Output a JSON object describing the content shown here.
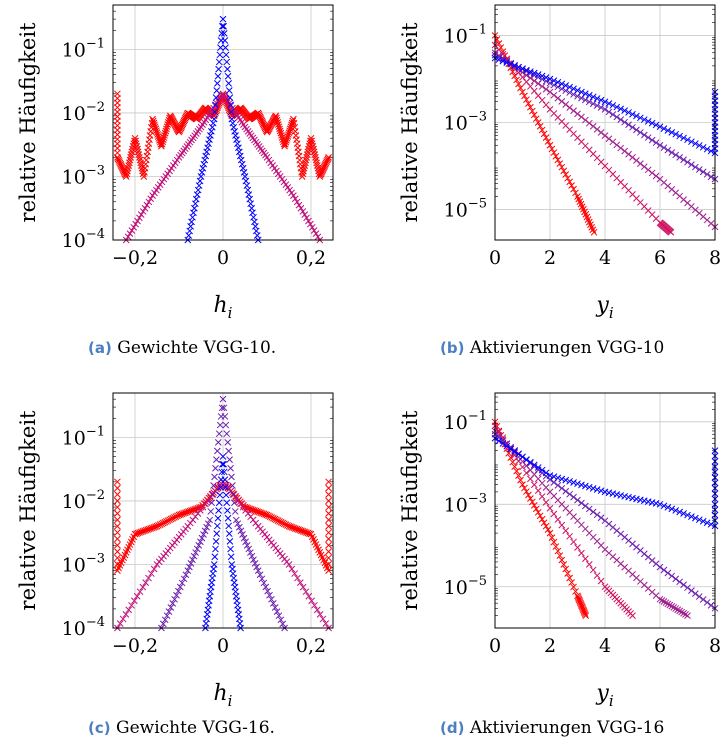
{
  "colors": {
    "red": "#ff0000",
    "blue": "#0000ff"
  },
  "chart_data": [
    {
      "type": "scatter",
      "ylabel": "relative Häufigkeit",
      "xlabel": "h_i",
      "xlim": [
        -0.25,
        0.25
      ],
      "ylim": [
        0.0001,
        0.5
      ],
      "y_scale": "log",
      "grid": true,
      "xticks": [
        "−0,2",
        "0",
        "0,2"
      ],
      "yticks": [
        "10^−4",
        "10^−3",
        "10^−2",
        "10^−1"
      ],
      "caption": {
        "tag": "(a)",
        "text": "Gewichte VGG-10."
      },
      "series": [
        {
          "color": "#ff0000",
          "points": [
            [
              -0.24,
              0.02
            ],
            [
              -0.24,
              0.002
            ],
            [
              -0.22,
              0.001
            ],
            [
              -0.2,
              0.004
            ],
            [
              -0.18,
              0.001
            ],
            [
              -0.16,
              0.008
            ],
            [
              -0.14,
              0.003
            ],
            [
              -0.12,
              0.009
            ],
            [
              -0.1,
              0.005
            ],
            [
              -0.08,
              0.01
            ],
            [
              -0.06,
              0.008
            ],
            [
              -0.04,
              0.012
            ],
            [
              -0.02,
              0.009
            ],
            [
              0,
              0.02
            ],
            [
              0.02,
              0.009
            ],
            [
              0.04,
              0.012
            ],
            [
              0.06,
              0.008
            ],
            [
              0.08,
              0.01
            ],
            [
              0.1,
              0.005
            ],
            [
              0.12,
              0.009
            ],
            [
              0.14,
              0.003
            ],
            [
              0.16,
              0.008
            ],
            [
              0.18,
              0.001
            ],
            [
              0.2,
              0.004
            ],
            [
              0.22,
              0.001
            ],
            [
              0.24,
              0.002
            ]
          ]
        },
        {
          "color": "#c0107a",
          "points": [
            [
              -0.22,
              0.0001
            ],
            [
              -0.16,
              0.0005
            ],
            [
              -0.1,
              0.002
            ],
            [
              -0.05,
              0.006
            ],
            [
              0,
              0.02
            ],
            [
              0.05,
              0.006
            ],
            [
              0.1,
              0.002
            ],
            [
              0.16,
              0.0005
            ],
            [
              0.22,
              0.0001
            ]
          ]
        },
        {
          "color": "#0000ff",
          "points": [
            [
              -0.08,
              0.0001
            ],
            [
              -0.05,
              0.001
            ],
            [
              -0.02,
              0.008
            ],
            [
              0,
              0.3
            ],
            [
              0.02,
              0.008
            ],
            [
              0.05,
              0.001
            ],
            [
              0.08,
              0.0001
            ]
          ]
        }
      ]
    },
    {
      "type": "scatter",
      "ylabel": "relative Häufigkeit",
      "xlabel": "y_i",
      "xlim": [
        0,
        8
      ],
      "ylim": [
        2e-06,
        0.5
      ],
      "y_scale": "log",
      "grid": true,
      "xticks": [
        "0",
        "2",
        "4",
        "6",
        "8"
      ],
      "yticks": [
        "10^−5",
        "10^−3",
        "10^−1"
      ],
      "caption": {
        "tag": "(b)",
        "text": "Aktivierungen VGG-10"
      },
      "series": [
        {
          "color": "#ff0000",
          "points": [
            [
              0,
              0.1
            ],
            [
              1,
              0.005
            ],
            [
              2,
              0.0003
            ],
            [
              3,
              2e-05
            ],
            [
              3.6,
              3e-06
            ]
          ]
        },
        {
          "color": "#d01060",
          "points": [
            [
              0,
              0.06
            ],
            [
              2,
              0.002
            ],
            [
              4,
              0.0001
            ],
            [
              6,
              5e-06
            ],
            [
              6.4,
              3e-06
            ]
          ]
        },
        {
          "color": "#a01f8c",
          "points": [
            [
              0,
              0.04
            ],
            [
              2,
              0.005
            ],
            [
              4,
              0.0005
            ],
            [
              6,
              5e-05
            ],
            [
              8,
              4e-06
            ]
          ]
        },
        {
          "color": "#6a1fb0",
          "points": [
            [
              0,
              0.035
            ],
            [
              2,
              0.008
            ],
            [
              4,
              0.002
            ],
            [
              6,
              0.0003
            ],
            [
              8,
              5e-05
            ]
          ]
        },
        {
          "color": "#0000ff",
          "points": [
            [
              0,
              0.03
            ],
            [
              2,
              0.01
            ],
            [
              4,
              0.003
            ],
            [
              6,
              0.0008
            ],
            [
              8,
              0.0002
            ],
            [
              8,
              0.005
            ]
          ]
        }
      ]
    },
    {
      "type": "scatter",
      "ylabel": "relative Häufigkeit",
      "xlabel": "h_i",
      "xlim": [
        -0.25,
        0.25
      ],
      "ylim": [
        0.0001,
        0.5
      ],
      "y_scale": "log",
      "grid": true,
      "xticks": [
        "−0,2",
        "0",
        "0,2"
      ],
      "yticks": [
        "10^−4",
        "10^−3",
        "10^−2",
        "10^−1"
      ],
      "caption": {
        "tag": "(c)",
        "text": "Gewichte VGG-16."
      },
      "series": [
        {
          "color": "#ff0000",
          "points": [
            [
              -0.24,
              0.02
            ],
            [
              -0.24,
              0.0008
            ],
            [
              -0.2,
              0.003
            ],
            [
              -0.15,
              0.004
            ],
            [
              -0.1,
              0.006
            ],
            [
              -0.05,
              0.008
            ],
            [
              0,
              0.02
            ],
            [
              0.05,
              0.008
            ],
            [
              0.1,
              0.006
            ],
            [
              0.15,
              0.004
            ],
            [
              0.2,
              0.003
            ],
            [
              0.24,
              0.0008
            ],
            [
              0.24,
              0.02
            ]
          ]
        },
        {
          "color": "#c0107a",
          "points": [
            [
              -0.24,
              0.0001
            ],
            [
              -0.15,
              0.001
            ],
            [
              -0.08,
              0.004
            ],
            [
              0,
              0.02
            ],
            [
              0.08,
              0.004
            ],
            [
              0.15,
              0.001
            ],
            [
              0.24,
              0.0001
            ]
          ]
        },
        {
          "color": "#6a1fb0",
          "points": [
            [
              -0.14,
              0.0001
            ],
            [
              -0.08,
              0.0008
            ],
            [
              -0.03,
              0.005
            ],
            [
              0,
              0.4
            ],
            [
              0.03,
              0.005
            ],
            [
              0.08,
              0.0008
            ],
            [
              0.14,
              0.0001
            ]
          ]
        },
        {
          "color": "#0000ff",
          "points": [
            [
              -0.04,
              0.0001
            ],
            [
              -0.02,
              0.001
            ],
            [
              0,
              0.05
            ],
            [
              0.02,
              0.001
            ],
            [
              0.04,
              0.0001
            ]
          ]
        }
      ]
    },
    {
      "type": "scatter",
      "ylabel": "relative Häufigkeit",
      "xlabel": "y_i",
      "xlim": [
        0,
        8
      ],
      "ylim": [
        1e-06,
        0.5
      ],
      "y_scale": "log",
      "grid": true,
      "xticks": [
        "0",
        "2",
        "4",
        "6",
        "8"
      ],
      "yticks": [
        "10^−5",
        "10^−3",
        "10^−1"
      ],
      "caption": {
        "tag": "(d)",
        "text": "Aktivierungen VGG-16"
      },
      "series": [
        {
          "color": "#ff0000",
          "points": [
            [
              0,
              0.1
            ],
            [
              1,
              0.003
            ],
            [
              2,
              0.0002
            ],
            [
              3,
              6e-06
            ],
            [
              3.3,
              2e-06
            ]
          ]
        },
        {
          "color": "#d01060",
          "points": [
            [
              0,
              0.08
            ],
            [
              2,
              0.0008
            ],
            [
              4,
              1e-05
            ],
            [
              5,
              2e-06
            ]
          ]
        },
        {
          "color": "#a01f8c",
          "points": [
            [
              0,
              0.06
            ],
            [
              2,
              0.002
            ],
            [
              4,
              8e-05
            ],
            [
              6,
              5e-06
            ],
            [
              7,
              2e-06
            ]
          ]
        },
        {
          "color": "#6a1fb0",
          "points": [
            [
              0,
              0.05
            ],
            [
              2,
              0.004
            ],
            [
              4,
              0.0004
            ],
            [
              6,
              3e-05
            ],
            [
              8,
              3e-06
            ]
          ]
        },
        {
          "color": "#0000ff",
          "points": [
            [
              0,
              0.04
            ],
            [
              2,
              0.005
            ],
            [
              4,
              0.002
            ],
            [
              6,
              0.001
            ],
            [
              8,
              0.0003
            ],
            [
              8,
              0.02
            ]
          ]
        }
      ]
    }
  ]
}
